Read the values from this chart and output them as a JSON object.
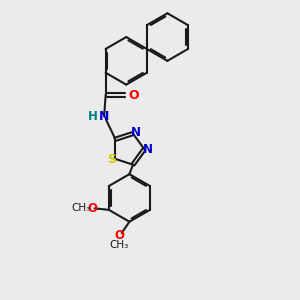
{
  "background_color": "#ebebeb",
  "bond_color": "#1a1a1a",
  "atom_colors": {
    "O": "#ff0000",
    "N": "#0000cc",
    "S": "#cccc00",
    "H": "#008080",
    "C": "#1a1a1a"
  },
  "figsize": [
    3.0,
    3.0
  ],
  "dpi": 100
}
